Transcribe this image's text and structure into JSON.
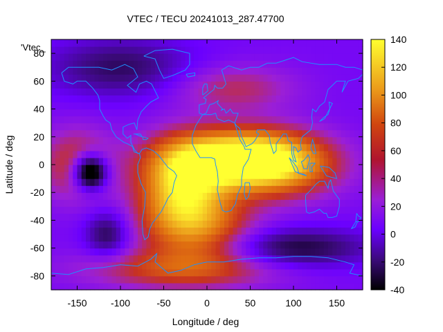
{
  "chart_data": {
    "type": "heatmap",
    "title": "VTEC / TECU 20241013_287.47700",
    "xlabel": "Longitude / deg",
    "ylabel": "Latitude / deg",
    "legend_key": "'Vtec_",
    "xlim": [
      -180,
      180
    ],
    "ylim": [
      -90,
      90
    ],
    "x_ticks": [
      -150,
      -100,
      -50,
      0,
      50,
      100,
      150
    ],
    "y_ticks": [
      -80,
      -60,
      -40,
      -20,
      0,
      20,
      40,
      60,
      80
    ],
    "colorbar": {
      "range": [
        -40,
        140
      ],
      "ticks": [
        -40,
        -20,
        0,
        20,
        40,
        60,
        80,
        100,
        120,
        140
      ]
    },
    "grid_step_deg": 5,
    "features": [
      {
        "lon": 30,
        "lat": 5,
        "value": 125,
        "sigma_lon": 55,
        "sigma_lat": 14
      },
      {
        "lon": 80,
        "lat": 0,
        "value": 100,
        "sigma_lon": 50,
        "sigma_lat": 16
      },
      {
        "lon": -30,
        "lat": -15,
        "value": 110,
        "sigma_lon": 35,
        "sigma_lat": 22
      },
      {
        "lon": -10,
        "lat": -45,
        "value": 85,
        "sigma_lon": 45,
        "sigma_lat": 18
      },
      {
        "lon": 30,
        "lat": 55,
        "value": 55,
        "sigma_lon": 50,
        "sigma_lat": 12
      },
      {
        "lon": -150,
        "lat": 0,
        "value": 70,
        "sigma_lon": 30,
        "sigma_lat": 18
      },
      {
        "lon": -30,
        "lat": -75,
        "value": 70,
        "sigma_lon": 80,
        "sigma_lat": 10
      },
      {
        "lon": -135,
        "lat": -5,
        "value": -95,
        "sigma_lon": 14,
        "sigma_lat": 9
      },
      {
        "lon": -115,
        "lat": -50,
        "value": -25,
        "sigma_lon": 18,
        "sigma_lat": 12
      },
      {
        "lon": 100,
        "lat": -60,
        "value": -30,
        "sigma_lon": 60,
        "sigma_lat": 10
      },
      {
        "lon": -100,
        "lat": 70,
        "value": -20,
        "sigma_lon": 60,
        "sigma_lat": 15
      }
    ],
    "background_value": 18,
    "colors": {
      "coastline": "#1e90ff",
      "palette": [
        "#000000",
        "#3b0a7a",
        "#6a00ff",
        "#9b1fd6",
        "#c7321f",
        "#e07010",
        "#f0b020",
        "#ffff30"
      ]
    },
    "coastlines": [
      [
        [
          -168,
          66
        ],
        [
          -160,
          70
        ],
        [
          -140,
          70
        ],
        [
          -125,
          70
        ],
        [
          -110,
          68
        ],
        [
          -95,
          72
        ],
        [
          -85,
          69
        ],
        [
          -80,
          63
        ],
        [
          -92,
          57
        ],
        [
          -82,
          52
        ],
        [
          -78,
          58
        ],
        [
          -70,
          60
        ],
        [
          -64,
          58
        ],
        [
          -60,
          53
        ],
        [
          -56,
          48
        ],
        [
          -65,
          45
        ],
        [
          -70,
          42
        ],
        [
          -76,
          38
        ],
        [
          -80,
          32
        ],
        [
          -81,
          25
        ],
        [
          -84,
          30
        ],
        [
          -90,
          29
        ],
        [
          -97,
          27
        ],
        [
          -97,
          22
        ],
        [
          -92,
          19
        ],
        [
          -88,
          21
        ],
        [
          -88,
          16
        ],
        [
          -84,
          11
        ],
        [
          -80,
          8
        ],
        [
          -78,
          8
        ],
        [
          -84,
          9
        ],
        [
          -86,
          13
        ],
        [
          -92,
          15
        ],
        [
          -96,
          16
        ],
        [
          -105,
          20
        ],
        [
          -110,
          25
        ],
        [
          -112,
          30
        ],
        [
          -117,
          32
        ],
        [
          -120,
          35
        ],
        [
          -124,
          40
        ],
        [
          -124,
          46
        ],
        [
          -126,
          50
        ],
        [
          -132,
          55
        ],
        [
          -140,
          60
        ],
        [
          -150,
          60
        ],
        [
          -155,
          58
        ],
        [
          -165,
          60
        ],
        [
          -168,
          66
        ]
      ],
      [
        [
          -73,
          78
        ],
        [
          -60,
          82
        ],
        [
          -40,
          83
        ],
        [
          -20,
          80
        ],
        [
          -20,
          72
        ],
        [
          -25,
          68
        ],
        [
          -40,
          64
        ],
        [
          -50,
          62
        ],
        [
          -55,
          68
        ],
        [
          -60,
          76
        ],
        [
          -73,
          78
        ]
      ],
      [
        [
          -78,
          8
        ],
        [
          -75,
          11
        ],
        [
          -70,
          12
        ],
        [
          -62,
          10
        ],
        [
          -55,
          6
        ],
        [
          -50,
          2
        ],
        [
          -45,
          -2
        ],
        [
          -38,
          -5
        ],
        [
          -35,
          -8
        ],
        [
          -38,
          -13
        ],
        [
          -40,
          -20
        ],
        [
          -45,
          -24
        ],
        [
          -48,
          -28
        ],
        [
          -53,
          -34
        ],
        [
          -58,
          -38
        ],
        [
          -63,
          -42
        ],
        [
          -66,
          -46
        ],
        [
          -68,
          -52
        ],
        [
          -72,
          -54
        ],
        [
          -74,
          -50
        ],
        [
          -75,
          -40
        ],
        [
          -72,
          -30
        ],
        [
          -71,
          -20
        ],
        [
          -76,
          -14
        ],
        [
          -80,
          -6
        ],
        [
          -80,
          0
        ],
        [
          -77,
          5
        ],
        [
          -78,
          8
        ]
      ],
      [
        [
          -17,
          21
        ],
        [
          -17,
          15
        ],
        [
          -13,
          10
        ],
        [
          -8,
          5
        ],
        [
          -3,
          5
        ],
        [
          5,
          5
        ],
        [
          9,
          4
        ],
        [
          10,
          0
        ],
        [
          12,
          -5
        ],
        [
          13,
          -12
        ],
        [
          12,
          -18
        ],
        [
          15,
          -27
        ],
        [
          18,
          -33
        ],
        [
          22,
          -34
        ],
        [
          28,
          -33
        ],
        [
          33,
          -28
        ],
        [
          35,
          -22
        ],
        [
          40,
          -15
        ],
        [
          40,
          -10
        ],
        [
          42,
          -2
        ],
        [
          48,
          4
        ],
        [
          51,
          11
        ],
        [
          44,
          11
        ],
        [
          43,
          13
        ],
        [
          38,
          18
        ],
        [
          35,
          24
        ],
        [
          32,
          30
        ],
        [
          25,
          32
        ],
        [
          20,
          31
        ],
        [
          12,
          33
        ],
        [
          10,
          37
        ],
        [
          5,
          36
        ],
        [
          -5,
          36
        ],
        [
          -9,
          32
        ],
        [
          -13,
          28
        ],
        [
          -17,
          21
        ]
      ],
      [
        [
          44,
          -13
        ],
        [
          49,
          -13
        ],
        [
          50,
          -17
        ],
        [
          48,
          -23
        ],
        [
          45,
          -25
        ],
        [
          43,
          -21
        ],
        [
          44,
          -13
        ]
      ],
      [
        [
          -9,
          37
        ],
        [
          -9,
          43
        ],
        [
          -2,
          44
        ],
        [
          -1,
          47
        ],
        [
          -4,
          48
        ],
        [
          2,
          51
        ],
        [
          8,
          54
        ],
        [
          9,
          57
        ],
        [
          12,
          55
        ],
        [
          18,
          55
        ],
        [
          22,
          58
        ],
        [
          20,
          62
        ],
        [
          17,
          68
        ],
        [
          25,
          71
        ],
        [
          40,
          68
        ],
        [
          50,
          70
        ],
        [
          60,
          70
        ],
        [
          70,
          73
        ],
        [
          80,
          73
        ],
        [
          100,
          77
        ],
        [
          110,
          74
        ],
        [
          130,
          72
        ],
        [
          150,
          72
        ],
        [
          160,
          70
        ],
        [
          170,
          70
        ],
        [
          180,
          68
        ],
        [
          180,
          65
        ],
        [
          175,
          62
        ],
        [
          163,
          60
        ],
        [
          156,
          52
        ],
        [
          160,
          60
        ],
        [
          150,
          60
        ],
        [
          140,
          54
        ],
        [
          136,
          45
        ],
        [
          130,
          42
        ],
        [
          126,
          38
        ],
        [
          122,
          40
        ],
        [
          121,
          34
        ],
        [
          122,
          30
        ],
        [
          120,
          25
        ],
        [
          116,
          23
        ],
        [
          110,
          20
        ],
        [
          108,
          15
        ],
        [
          109,
          11
        ],
        [
          105,
          9
        ],
        [
          103,
          12
        ],
        [
          100,
          13
        ],
        [
          100,
          8
        ],
        [
          103,
          2
        ],
        [
          100,
          3
        ],
        [
          98,
          8
        ],
        [
          98,
          16
        ],
        [
          94,
          17
        ],
        [
          92,
          22
        ],
        [
          88,
          22
        ],
        [
          86,
          20
        ],
        [
          80,
          15
        ],
        [
          80,
          10
        ],
        [
          77,
          8
        ],
        [
          73,
          16
        ],
        [
          72,
          21
        ],
        [
          67,
          25
        ],
        [
          58,
          25
        ],
        [
          57,
          23
        ],
        [
          60,
          22
        ],
        [
          55,
          17
        ],
        [
          52,
          15
        ],
        [
          45,
          13
        ],
        [
          43,
          16
        ],
        [
          40,
          20
        ],
        [
          38,
          26
        ],
        [
          34,
          28
        ],
        [
          32,
          30
        ],
        [
          35,
          35
        ],
        [
          36,
          37
        ],
        [
          30,
          37
        ],
        [
          27,
          40
        ],
        [
          24,
          38
        ],
        [
          22,
          37
        ],
        [
          20,
          40
        ],
        [
          16,
          39
        ],
        [
          18,
          40
        ],
        [
          12,
          44
        ],
        [
          13,
          46
        ],
        [
          8,
          44
        ],
        [
          3,
          43
        ],
        [
          -1,
          37
        ],
        [
          -5,
          36
        ],
        [
          -9,
          37
        ]
      ],
      [
        [
          -5,
          50
        ],
        [
          -5,
          55
        ],
        [
          -3,
          58
        ],
        [
          0,
          58
        ],
        [
          1,
          53
        ],
        [
          -5,
          50
        ]
      ],
      [
        [
          -24,
          65
        ],
        [
          -14,
          66
        ],
        [
          -14,
          64
        ],
        [
          -22,
          63
        ],
        [
          -24,
          65
        ]
      ],
      [
        [
          130,
          31
        ],
        [
          135,
          34
        ],
        [
          140,
          36
        ],
        [
          142,
          40
        ],
        [
          141,
          45
        ],
        [
          145,
          44
        ],
        [
          140,
          38
        ],
        [
          136,
          33
        ],
        [
          130,
          31
        ]
      ],
      [
        [
          95,
          5
        ],
        [
          98,
          3
        ],
        [
          104,
          -2
        ],
        [
          106,
          -6
        ],
        [
          102,
          -5
        ],
        [
          95,
          5
        ]
      ],
      [
        [
          105,
          -6
        ],
        [
          115,
          -8
        ],
        [
          112,
          -7
        ],
        [
          105,
          -6
        ]
      ],
      [
        [
          109,
          2
        ],
        [
          112,
          3
        ],
        [
          117,
          7
        ],
        [
          119,
          4
        ],
        [
          117,
          0
        ],
        [
          116,
          -3
        ],
        [
          112,
          -3
        ],
        [
          109,
          2
        ]
      ],
      [
        [
          119,
          1
        ],
        [
          125,
          1
        ],
        [
          121,
          -2
        ],
        [
          122,
          -5
        ],
        [
          119,
          -5
        ],
        [
          119,
          1
        ]
      ],
      [
        [
          131,
          -1
        ],
        [
          141,
          -2
        ],
        [
          148,
          -6
        ],
        [
          150,
          -10
        ],
        [
          143,
          -9
        ],
        [
          138,
          -8
        ],
        [
          131,
          -1
        ]
      ],
      [
        [
          114,
          -22
        ],
        [
          114,
          -26
        ],
        [
          115,
          -34
        ],
        [
          118,
          -35
        ],
        [
          124,
          -34
        ],
        [
          130,
          -32
        ],
        [
          135,
          -35
        ],
        [
          138,
          -35
        ],
        [
          140,
          -38
        ],
        [
          145,
          -38
        ],
        [
          150,
          -37
        ],
        [
          153,
          -30
        ],
        [
          153,
          -25
        ],
        [
          146,
          -19
        ],
        [
          143,
          -11
        ],
        [
          141,
          -13
        ],
        [
          140,
          -17
        ],
        [
          136,
          -12
        ],
        [
          130,
          -12
        ],
        [
          126,
          -14
        ],
        [
          122,
          -17
        ],
        [
          114,
          -22
        ]
      ],
      [
        [
          173,
          -35
        ],
        [
          175,
          -37
        ],
        [
          178,
          -38
        ],
        [
          175,
          -41
        ],
        [
          172,
          -41
        ],
        [
          173,
          -35
        ]
      ],
      [
        [
          172,
          -41
        ],
        [
          174,
          -41
        ],
        [
          171,
          -45
        ],
        [
          167,
          -46
        ],
        [
          172,
          -41
        ]
      ],
      [
        [
          -180,
          -78
        ],
        [
          -160,
          -79
        ],
        [
          -140,
          -75
        ],
        [
          -120,
          -74
        ],
        [
          -100,
          -72
        ],
        [
          -80,
          -73
        ],
        [
          -65,
          -68
        ],
        [
          -58,
          -64
        ],
        [
          -60,
          -70
        ],
        [
          -45,
          -78
        ],
        [
          -30,
          -76
        ],
        [
          -15,
          -72
        ],
        [
          0,
          -70
        ],
        [
          20,
          -70
        ],
        [
          40,
          -68
        ],
        [
          60,
          -67
        ],
        [
          80,
          -67
        ],
        [
          100,
          -66
        ],
        [
          120,
          -66
        ],
        [
          140,
          -67
        ],
        [
          160,
          -70
        ],
        [
          170,
          -72
        ],
        [
          165,
          -78
        ],
        [
          180,
          -80
        ]
      ],
      [
        [
          120,
          12
        ],
        [
          122,
          18
        ],
        [
          124,
          14
        ],
        [
          126,
          8
        ],
        [
          123,
          8
        ],
        [
          120,
          12
        ]
      ],
      [
        [
          -85,
          22
        ],
        [
          -77,
          22
        ],
        [
          -75,
          20
        ],
        [
          -83,
          22
        ],
        [
          -85,
          22
        ]
      ],
      [
        [
          -74,
          20
        ],
        [
          -68,
          19
        ],
        [
          -70,
          18
        ],
        [
          -74,
          18
        ],
        [
          -74,
          20
        ]
      ]
    ]
  }
}
